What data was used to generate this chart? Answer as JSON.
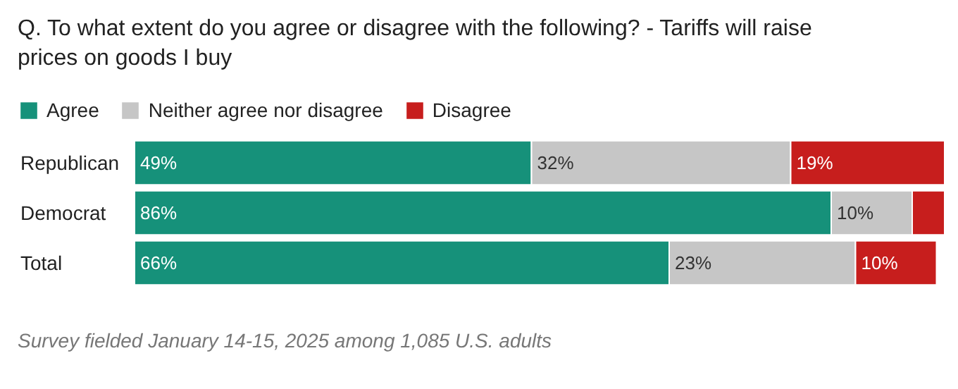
{
  "chart_data": {
    "type": "bar",
    "orientation": "horizontal",
    "stacked": true,
    "title": "Q. To what extent do you agree or disagree with the following? - Tariffs will raise prices on goods I buy",
    "categories": [
      "Republican",
      "Democrat",
      "Total"
    ],
    "series": [
      {
        "name": "Agree",
        "color": "#16917a",
        "values": [
          49,
          86,
          66
        ],
        "value_labels": [
          "49%",
          "86%",
          "66%"
        ]
      },
      {
        "name": "Neither agree nor disagree",
        "color": "#c6c6c6",
        "values": [
          32,
          10,
          23
        ],
        "value_labels": [
          "32%",
          "10%",
          "23%"
        ]
      },
      {
        "name": "Disagree",
        "color": "#c71e1d",
        "values": [
          19,
          4,
          10
        ],
        "value_labels": [
          "19%",
          null,
          "10%"
        ]
      }
    ],
    "xlim": [
      0,
      100
    ],
    "tick_labels": "y",
    "grid": false,
    "legend": "top left",
    "annotations": [
      "Survey fielded January 14-15, 2025 among 1,085 U.S. adults"
    ]
  }
}
